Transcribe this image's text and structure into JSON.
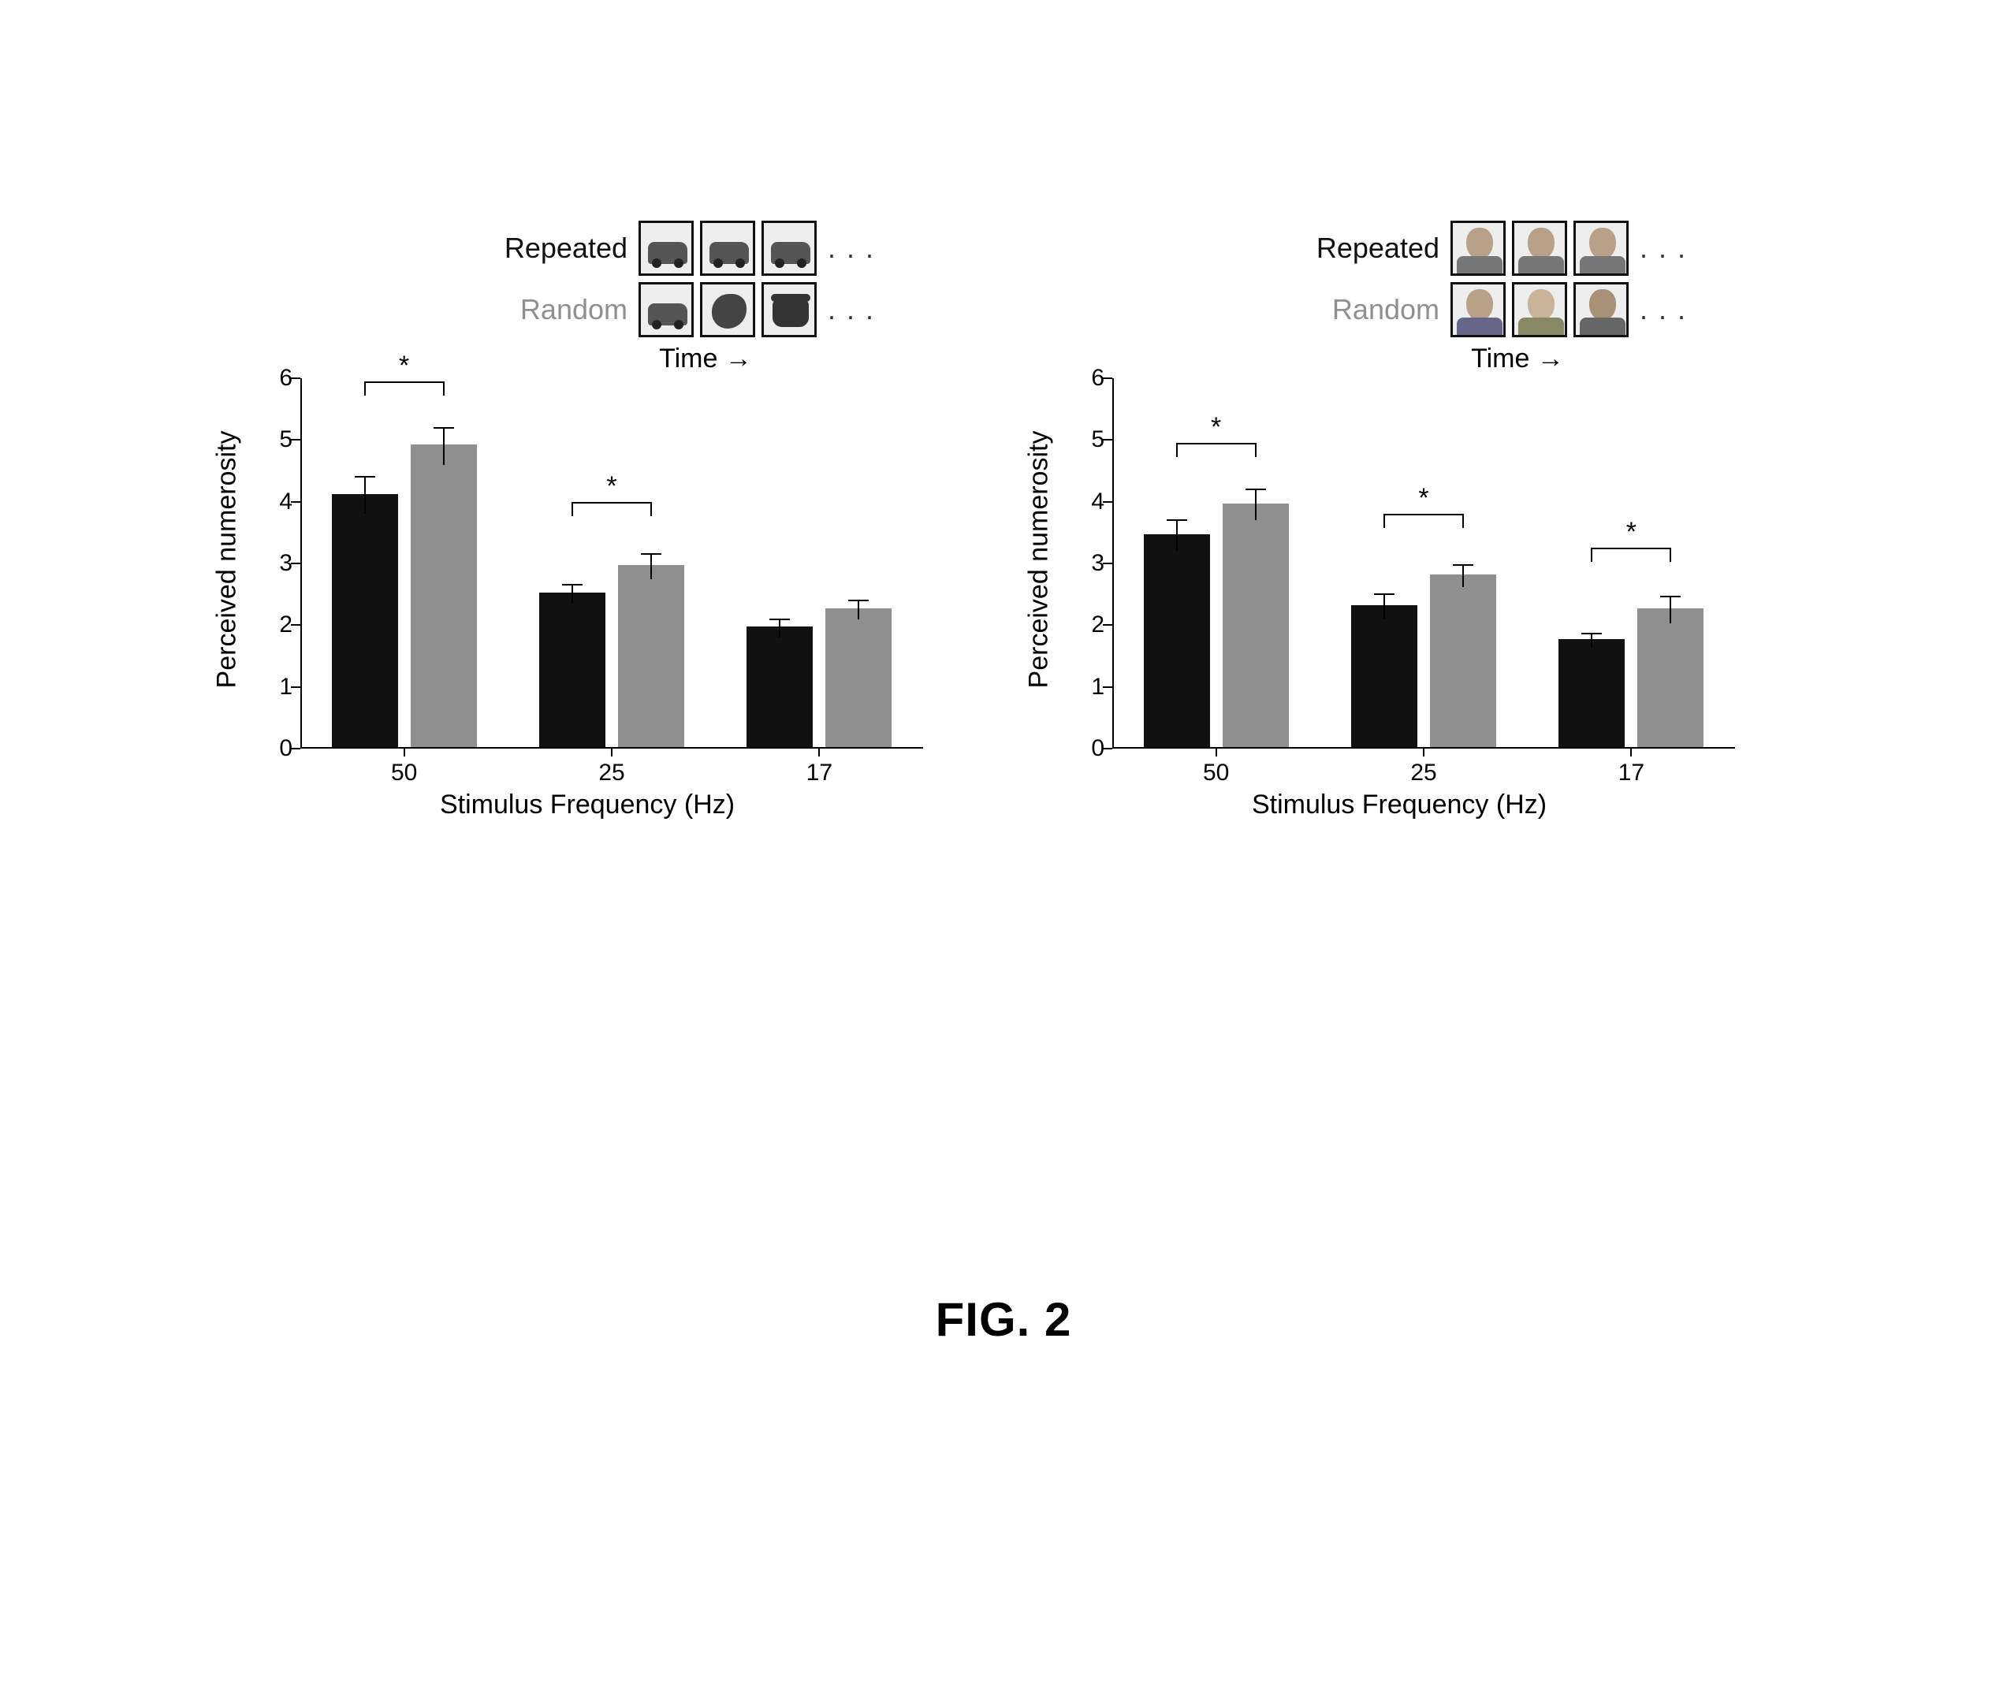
{
  "figure_label": "FIG. 2",
  "colors": {
    "repeated_bar": "#111111",
    "random_bar": "#8f8f8f",
    "repeated_text": "#111111",
    "random_text": "#8f8f8f",
    "axis": "#000000",
    "background": "#ffffff",
    "stim_border": "#111111",
    "stim_fill": "#e8e8e8"
  },
  "typography": {
    "axis_label_fontsize": 34,
    "tick_fontsize": 30,
    "legend_fontsize": 36,
    "caption_fontsize": 60,
    "caption_weight": "bold"
  },
  "shared": {
    "ylabel": "Perceived numerosity",
    "xlabel": "Stimulus Frequency (Hz)",
    "ylim": [
      0,
      6
    ],
    "yticks": [
      0,
      1,
      2,
      3,
      4,
      5,
      6
    ],
    "categories": [
      "50",
      "25",
      "17"
    ],
    "legend_time": "Time →",
    "legend_items": [
      {
        "label": "Repeated",
        "color_key": "repeated_text"
      },
      {
        "label": "Random",
        "color_key": "random_text"
      }
    ],
    "bar_width_ratio": 0.32,
    "group_gap_ratio": 0.06,
    "error_cap_width": 26
  },
  "panel_a": {
    "type": "bar",
    "stimulus_kind": "objects",
    "stimuli": {
      "repeated": [
        "car",
        "car",
        "car"
      ],
      "random": [
        "car",
        "blob",
        "phone"
      ]
    },
    "series": [
      {
        "name": "Repeated",
        "color_key": "repeated_bar",
        "values": [
          4.1,
          2.5,
          1.95
        ],
        "err_low": [
          0.3,
          0.15,
          0.15
        ],
        "err_high": [
          0.3,
          0.15,
          0.15
        ]
      },
      {
        "name": "Random",
        "color_key": "random_bar",
        "values": [
          4.9,
          2.95,
          2.25
        ],
        "err_low": [
          0.3,
          0.2,
          0.15
        ],
        "err_high": [
          0.3,
          0.2,
          0.15
        ]
      }
    ],
    "significance": [
      {
        "group_index": 0,
        "y": 5.95,
        "marker": "*"
      },
      {
        "group_index": 1,
        "y": 4.0,
        "marker": "*"
      }
    ]
  },
  "panel_b": {
    "type": "bar",
    "stimulus_kind": "faces",
    "stimuli": {
      "repeated": [
        "face1",
        "face1",
        "face1"
      ],
      "random": [
        "face1",
        "face2",
        "face3"
      ]
    },
    "series": [
      {
        "name": "Repeated",
        "color_key": "repeated_bar",
        "values": [
          3.45,
          2.3,
          1.75
        ],
        "err_low": [
          0.25,
          0.2,
          0.12
        ],
        "err_high": [
          0.25,
          0.2,
          0.12
        ]
      },
      {
        "name": "Random",
        "color_key": "random_bar",
        "values": [
          3.95,
          2.8,
          2.25
        ],
        "err_low": [
          0.25,
          0.18,
          0.22
        ],
        "err_high": [
          0.25,
          0.18,
          0.22
        ]
      }
    ],
    "significance": [
      {
        "group_index": 0,
        "y": 4.95,
        "marker": "*"
      },
      {
        "group_index": 1,
        "y": 3.8,
        "marker": "*"
      },
      {
        "group_index": 2,
        "y": 3.25,
        "marker": "*"
      }
    ]
  }
}
